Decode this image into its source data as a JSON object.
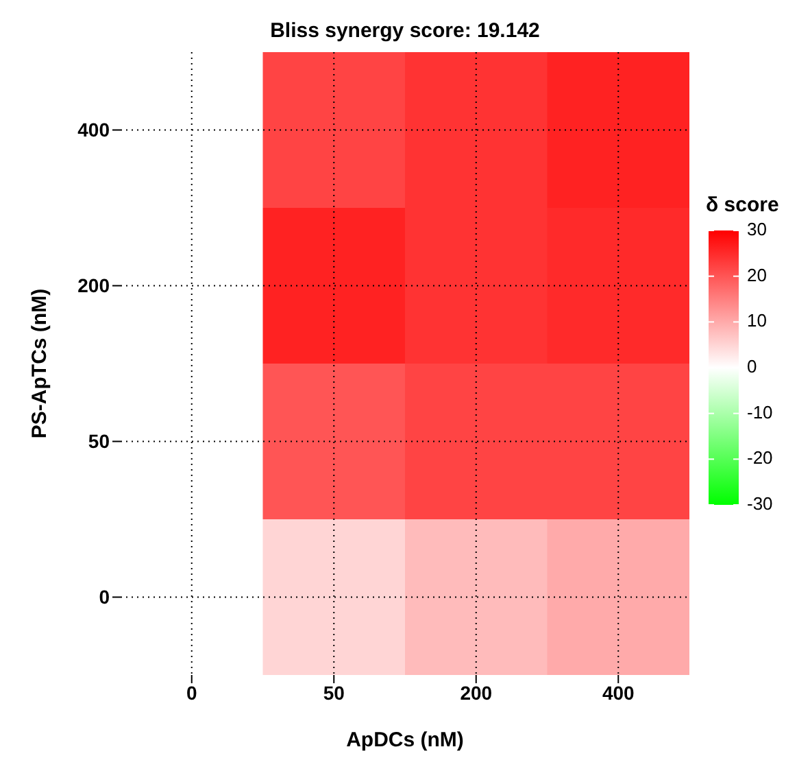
{
  "chart_data": {
    "type": "heatmap",
    "title": "Bliss synergy score: 19.142",
    "xlabel": "ApDCs (nM)",
    "ylabel": "PS-ApTCs (nM)",
    "clabel": "δ score",
    "categories": [
      "0",
      "50",
      "200",
      "400"
    ],
    "y_categories": [
      "400",
      "200",
      "50",
      "0"
    ],
    "cells": [
      [
        0,
        22,
        24,
        26
      ],
      [
        0,
        26,
        24,
        25
      ],
      [
        0,
        20,
        22,
        22
      ],
      [
        0,
        5,
        8,
        10
      ]
    ],
    "clim": [
      -30,
      30
    ],
    "cticks": [
      -30,
      -20,
      -10,
      0,
      10,
      20,
      30
    ],
    "grid": true
  }
}
